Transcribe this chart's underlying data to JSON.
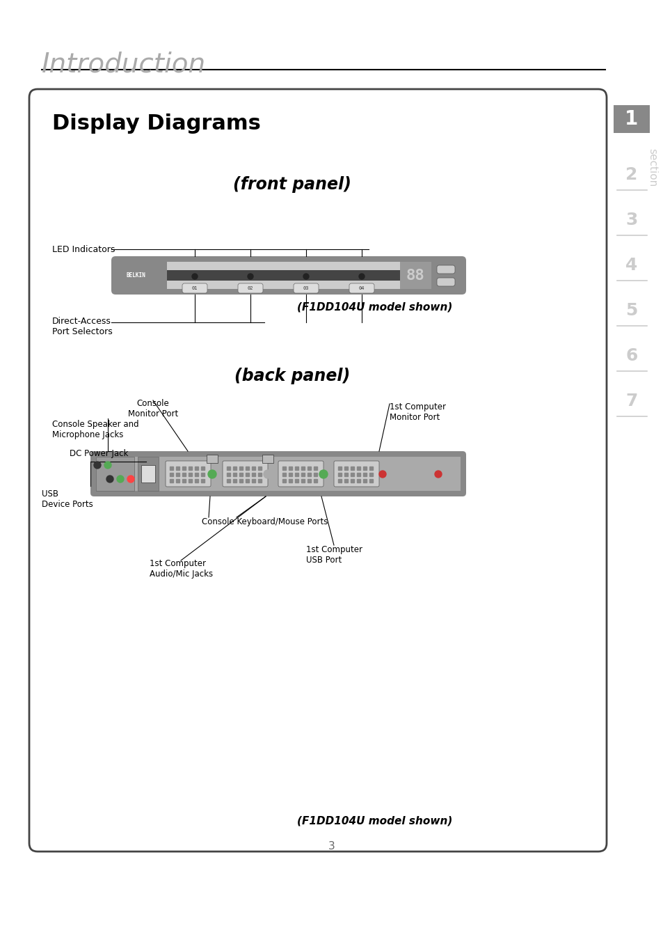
{
  "page_title": "Introduction",
  "section_numbers": [
    "1",
    "2",
    "3",
    "4",
    "5",
    "6",
    "7"
  ],
  "section_active": 0,
  "box_title": "Display Diagrams",
  "front_panel_label": "(front panel)",
  "back_panel_label": "(back panel)",
  "model_shown": "(F1DD104U model shown)",
  "led_label": "LED Indicators",
  "direct_access_label": "Direct-Access\nPort Selectors",
  "console_speaker_label": "Console Speaker and\nMicrophone Jacks",
  "dc_power_label": "DC Power Jack",
  "usb_device_label": "USB\nDevice Ports",
  "console_monitor_label": "Console\nMonitor Port",
  "first_computer_monitor_label": "1st Computer\nMonitor Port",
  "console_kb_label": "Console Keyboard/Mouse Ports",
  "first_computer_usb_label": "1st Computer\nUSB Port",
  "first_computer_audio_label": "1st Computer\nAudio/Mic Jacks",
  "page_number": "3",
  "bg_color": "#ffffff",
  "box_border_color": "#333333",
  "title_color": "#999999",
  "section_active_bg": "#888888",
  "section_inactive_color": "#cccccc"
}
